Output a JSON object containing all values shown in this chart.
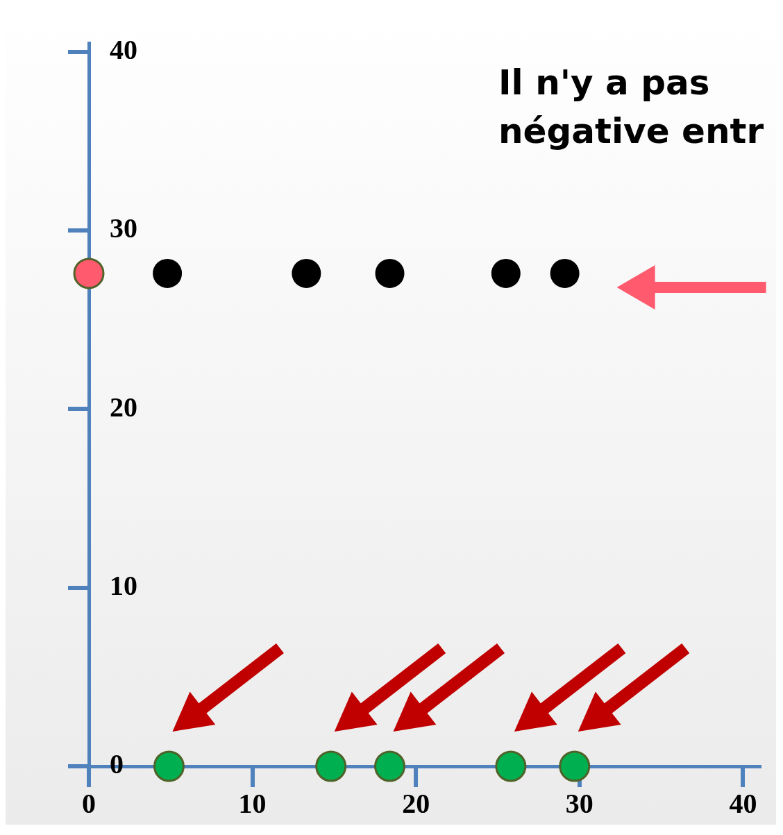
{
  "chart_data": {
    "type": "scatter",
    "xlim": [
      0,
      41
    ],
    "ylim": [
      0,
      40.5
    ],
    "xticks": [
      0,
      10,
      20,
      30,
      40
    ],
    "yticks": [
      0,
      10,
      20,
      30,
      40
    ],
    "grid": false,
    "legend": false,
    "marker": "circle",
    "annotations": [
      "Il n'y a pas\nnégative entr"
    ],
    "series": [
      {
        "color": "#000000",
        "x": [
          4.8,
          13.3,
          18.4,
          25.5,
          29.1
        ],
        "values": [
          27.6,
          27.6,
          27.6,
          27.6,
          27.6
        ]
      },
      {
        "color": "#00b050",
        "x": [
          4.9,
          14.8,
          18.4,
          25.8,
          29.7
        ],
        "values": [
          0,
          0,
          0,
          0,
          0
        ]
      },
      {
        "color": "#ff5a6e",
        "x": [
          0
        ],
        "values": [
          27.6
        ]
      }
    ]
  }
}
